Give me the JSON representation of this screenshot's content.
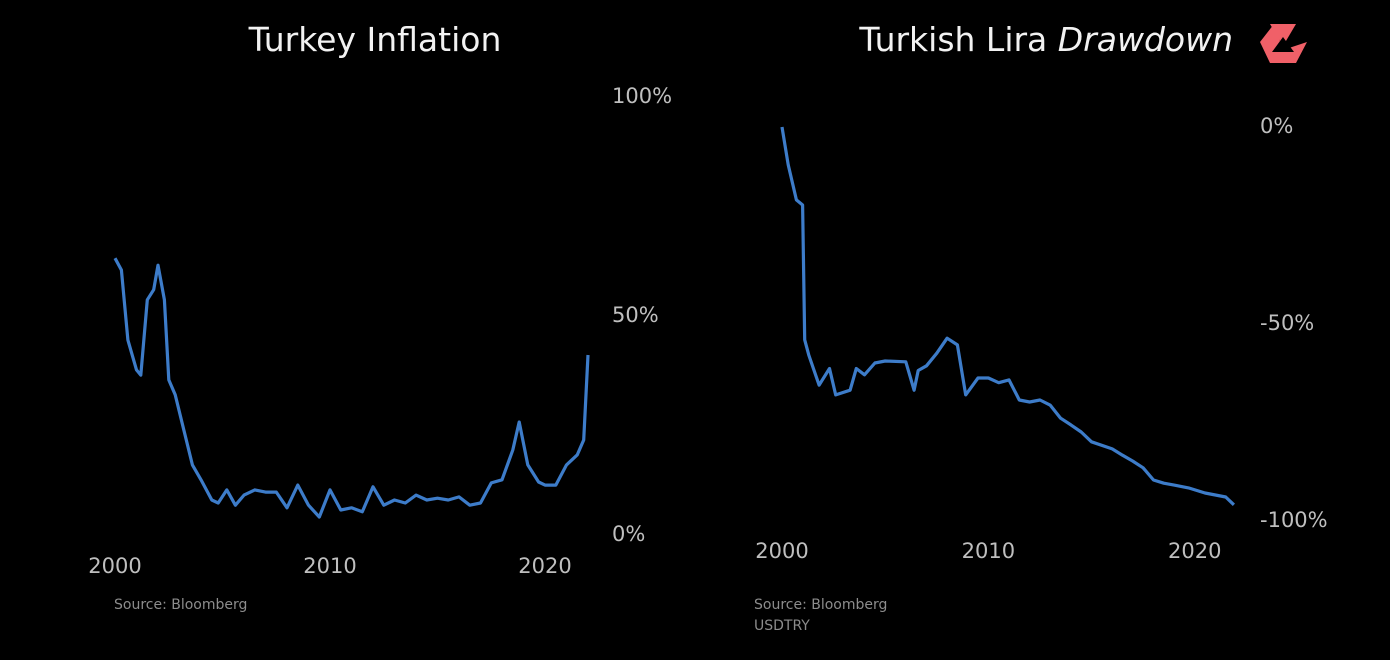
{
  "chart_data": [
    {
      "type": "line",
      "title": "Turkey Inflation",
      "source": "Source: Bloomberg",
      "xlim": [
        2000,
        2022
      ],
      "xticks": [
        2000,
        2010,
        2020
      ],
      "ylim": [
        0,
        100
      ],
      "yticks": [
        {
          "value": 0,
          "label": "0%"
        },
        {
          "value": 50,
          "label": "50%"
        },
        {
          "value": 100,
          "label": "100%"
        }
      ],
      "series": [
        {
          "color": "#3d7cc9",
          "x": [
            2000.0,
            2000.3,
            2000.6,
            2001.0,
            2001.2,
            2001.5,
            2001.8,
            2002.0,
            2002.3,
            2002.5,
            2002.8,
            2003.2,
            2003.6,
            2004.0,
            2004.5,
            2004.8,
            2005.2,
            2005.6,
            2006.0,
            2006.5,
            2007.0,
            2007.5,
            2008.0,
            2008.5,
            2009.0,
            2009.5,
            2010.0,
            2010.5,
            2011.0,
            2011.5,
            2012.0,
            2012.5,
            2013.0,
            2013.5,
            2014.0,
            2014.5,
            2015.0,
            2015.5,
            2016.0,
            2016.5,
            2017.0,
            2017.5,
            2018.0,
            2018.5,
            2018.8,
            2019.2,
            2019.7,
            2020.0,
            2020.5,
            2021.0,
            2021.5,
            2021.8,
            2022.0
          ],
          "values": [
            63.2,
            60.5,
            44.5,
            37.7,
            36.5,
            53.7,
            56,
            61.6,
            53.7,
            35.4,
            32,
            24,
            16,
            12.6,
            8,
            7.3,
            10.3,
            6.8,
            9.1,
            10.3,
            9.8,
            9.8,
            6.2,
            11.4,
            6.8,
            4.1,
            10.3,
            5.7,
            6.2,
            5.3,
            11,
            6.8,
            8,
            7.3,
            9.1,
            8,
            8.4,
            8,
            8.7,
            6.8,
            7.3,
            11.9,
            12.6,
            19.4,
            25.8,
            16,
            12.1,
            11.4,
            11.4,
            16,
            18.3,
            21.7,
            41.1
          ]
        }
      ]
    },
    {
      "type": "line",
      "title": "Turkish Lira",
      "title_emphasis": "Drawdown",
      "source": "Source: Bloomberg",
      "note": "USDTRY",
      "xlim": [
        2000,
        2022
      ],
      "xticks": [
        2000,
        2010,
        2020
      ],
      "ylim": [
        -100,
        0
      ],
      "yticks": [
        {
          "value": 0,
          "label": "0%"
        },
        {
          "value": -50,
          "label": "-50%"
        },
        {
          "value": -100,
          "label": "-100%"
        }
      ],
      "series": [
        {
          "color": "#3d7cc9",
          "x": [
            2000.0,
            2000.3,
            2000.7,
            2001.0,
            2001.1,
            2001.3,
            2001.8,
            2002.3,
            2002.6,
            2003.3,
            2003.6,
            2004.0,
            2004.5,
            2005.0,
            2006.0,
            2006.4,
            2006.6,
            2007.0,
            2007.5,
            2008.0,
            2008.5,
            2008.9,
            2009.5,
            2010.0,
            2010.5,
            2011.0,
            2011.5,
            2012.0,
            2012.5,
            2013.0,
            2013.5,
            2014.0,
            2014.5,
            2015.0,
            2016.0,
            2016.5,
            2017.0,
            2017.5,
            2018.0,
            2018.5,
            2019.0,
            2019.7,
            2020.5,
            2021.0,
            2021.5,
            2021.9
          ],
          "values": [
            0,
            -9.6,
            -18.5,
            -19.8,
            -54,
            -57.9,
            -65.5,
            -61.3,
            -68,
            -66.8,
            -61.3,
            -62.9,
            -59.9,
            -59.4,
            -59.6,
            -66.8,
            -61.8,
            -60.6,
            -57.4,
            -53.6,
            -55.3,
            -68,
            -63.7,
            -63.7,
            -64.9,
            -64.2,
            -69.3,
            -69.8,
            -69.3,
            -70.6,
            -73.9,
            -75.6,
            -77.4,
            -79.9,
            -81.7,
            -83.3,
            -84.8,
            -86.5,
            -89.6,
            -90.4,
            -90.9,
            -91.6,
            -92.9,
            -93.4,
            -93.9,
            -95.9
          ]
        }
      ]
    }
  ]
}
